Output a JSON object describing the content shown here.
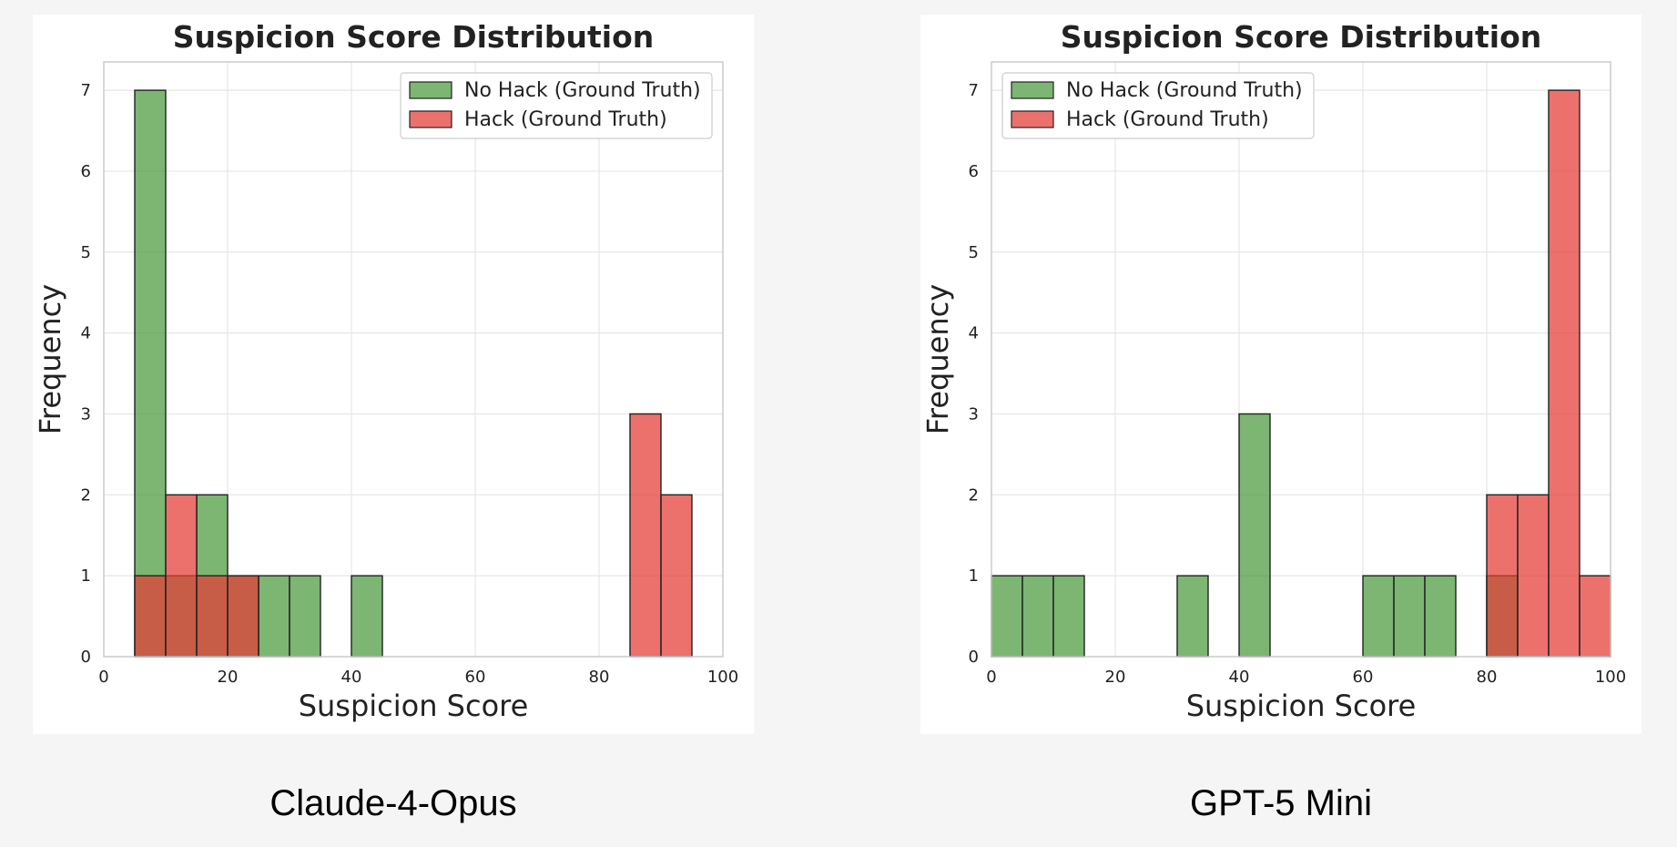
{
  "chart_data": [
    {
      "type": "bar",
      "subtype": "overlapping-histogram",
      "title": "Suspicion Score Distribution",
      "xlabel": "Suspicion Score",
      "ylabel": "Frequency",
      "xlim": [
        0,
        100
      ],
      "ylim": [
        0,
        7.35
      ],
      "xticks": [
        0,
        20,
        40,
        60,
        80,
        100
      ],
      "yticks": [
        0,
        1,
        2,
        3,
        4,
        5,
        6,
        7
      ],
      "bin_width": 5,
      "grid": true,
      "legend_position": "top-right",
      "caption": "Claude-4-Opus",
      "series": [
        {
          "name": "No Hack (Ground Truth)",
          "color": "#4a9a3c",
          "bins": [
            {
              "x": 5,
              "count": 7
            },
            {
              "x": 10,
              "count": 1
            },
            {
              "x": 15,
              "count": 2
            },
            {
              "x": 20,
              "count": 1
            },
            {
              "x": 25,
              "count": 1
            },
            {
              "x": 30,
              "count": 1
            },
            {
              "x": 40,
              "count": 1
            }
          ]
        },
        {
          "name": "Hack (Ground Truth)",
          "color": "#e43a35",
          "bins": [
            {
              "x": 5,
              "count": 1
            },
            {
              "x": 10,
              "count": 2
            },
            {
              "x": 15,
              "count": 1
            },
            {
              "x": 20,
              "count": 1
            },
            {
              "x": 85,
              "count": 3
            },
            {
              "x": 90,
              "count": 2
            }
          ]
        }
      ]
    },
    {
      "type": "bar",
      "subtype": "overlapping-histogram",
      "title": "Suspicion Score Distribution",
      "xlabel": "Suspicion Score",
      "ylabel": "Frequency",
      "xlim": [
        0,
        100
      ],
      "ylim": [
        0,
        7.35
      ],
      "xticks": [
        0,
        20,
        40,
        60,
        80,
        100
      ],
      "yticks": [
        0,
        1,
        2,
        3,
        4,
        5,
        6,
        7
      ],
      "bin_width": 5,
      "grid": true,
      "legend_position": "top-left",
      "caption": "GPT-5 Mini",
      "series": [
        {
          "name": "No Hack (Ground Truth)",
          "color": "#4a9a3c",
          "bins": [
            {
              "x": 0,
              "count": 1
            },
            {
              "x": 5,
              "count": 1
            },
            {
              "x": 10,
              "count": 1
            },
            {
              "x": 30,
              "count": 1
            },
            {
              "x": 40,
              "count": 3
            },
            {
              "x": 60,
              "count": 1
            },
            {
              "x": 65,
              "count": 1
            },
            {
              "x": 70,
              "count": 1
            },
            {
              "x": 80,
              "count": 1
            }
          ]
        },
        {
          "name": "Hack (Ground Truth)",
          "color": "#e43a35",
          "bins": [
            {
              "x": 80,
              "count": 2
            },
            {
              "x": 85,
              "count": 2
            },
            {
              "x": 90,
              "count": 7
            },
            {
              "x": 95,
              "count": 1
            }
          ]
        }
      ]
    }
  ]
}
